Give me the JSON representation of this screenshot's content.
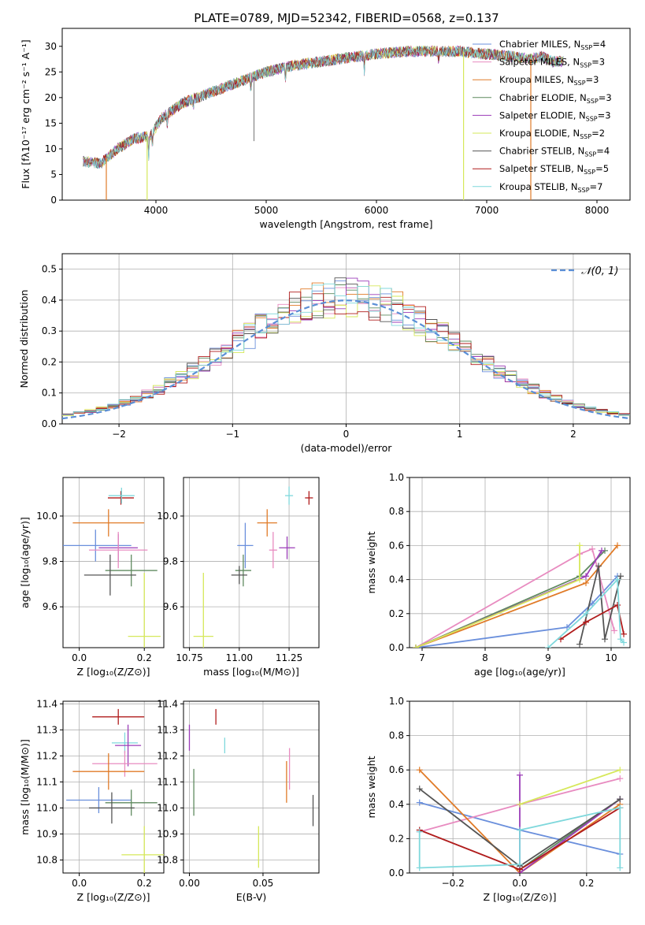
{
  "palette": {
    "chabrier_miles": "#6a8fdc",
    "salpeter_miles": "#e88bc0",
    "kroupa_miles": "#e07b28",
    "chabrier_elodie": "#5f8a5f",
    "salpeter_elodie": "#9b3cb8",
    "kroupa_elodie": "#d6e85a",
    "chabrier_stelib": "#555555",
    "salpeter_stelib": "#b01c1c",
    "kroupa_stelib": "#7fd8dc",
    "normal_curve": "#5b8fd6"
  },
  "chart_data": [
    {
      "id": "spectrum",
      "type": "line",
      "title": "PLATE=0789, MJD=52342, FIBERID=0568, z=0.137",
      "xlabel": "wavelength [Angstrom, rest frame]",
      "ylabel": "Flux [fλ10⁻¹⁷ erg cm⁻² s⁻¹ A⁻¹]",
      "xlim": [
        3150,
        8300
      ],
      "ylim": [
        0,
        33.5
      ],
      "xticks": [
        4000,
        5000,
        6000,
        7000,
        8000
      ],
      "yticks": [
        0,
        5,
        10,
        15,
        20,
        25,
        30
      ],
      "grid": false,
      "legend_position": "top-right",
      "legend": [
        {
          "label": "Chabrier MILES, N",
          "sub": "SSP",
          "tail": "=4",
          "color": "#6a8fdc"
        },
        {
          "label": "Salpeter MILES, N",
          "sub": "SSP",
          "tail": "=3",
          "color": "#e88bc0"
        },
        {
          "label": "Kroupa MILES, N",
          "sub": "SSP",
          "tail": "=3",
          "color": "#e07b28"
        },
        {
          "label": "Chabrier ELODIE, N",
          "sub": "SSP",
          "tail": "=3",
          "color": "#5f8a5f"
        },
        {
          "label": "Salpeter ELODIE, N",
          "sub": "SSP",
          "tail": "=3",
          "color": "#9b3cb8"
        },
        {
          "label": "Kroupa ELODIE, N",
          "sub": "SSP",
          "tail": "=2",
          "color": "#d6e85a"
        },
        {
          "label": "Chabrier STELIB, N",
          "sub": "SSP",
          "tail": "=4",
          "color": "#555555"
        },
        {
          "label": "Salpeter STELIB, N",
          "sub": "SSP",
          "tail": "=5",
          "color": "#b01c1c"
        },
        {
          "label": "Kroupa STELIB, N",
          "sub": "SSP",
          "tail": "=7",
          "color": "#7fd8dc"
        }
      ],
      "continuum": [
        [
          3340,
          7.5
        ],
        [
          3500,
          7.2
        ],
        [
          3650,
          10
        ],
        [
          3800,
          12
        ],
        [
          3950,
          12.5
        ],
        [
          4050,
          16
        ],
        [
          4250,
          19
        ],
        [
          4500,
          21
        ],
        [
          4750,
          23
        ],
        [
          5000,
          25
        ],
        [
          5250,
          26.3
        ],
        [
          5500,
          27
        ],
        [
          5750,
          27.8
        ],
        [
          6000,
          28.5
        ],
        [
          6250,
          29
        ],
        [
          6500,
          29
        ],
        [
          6750,
          29
        ],
        [
          7000,
          28.5
        ],
        [
          7250,
          28
        ],
        [
          7400,
          27.5
        ],
        [
          7500,
          28
        ],
        [
          7600,
          27
        ],
        [
          7700,
          27
        ]
      ],
      "series": [
        {
          "color": "#6a8fdc",
          "x_range": [
            3340,
            7700
          ],
          "drops": []
        },
        {
          "color": "#e88bc0",
          "x_range": [
            3340,
            7700
          ],
          "drops": []
        },
        {
          "color": "#e07b28",
          "x_range": [
            3340,
            7400
          ],
          "drops": [
            7400
          ]
        },
        {
          "color": "#5f8a5f",
          "x_range": [
            3340,
            7700
          ],
          "drops": []
        },
        {
          "color": "#9b3cb8",
          "x_range": [
            3340,
            7700
          ],
          "drops": []
        },
        {
          "color": "#d6e85a",
          "x_range": [
            3340,
            7700
          ],
          "drops": []
        },
        {
          "color": "#555555",
          "x_range": [
            3340,
            7700
          ],
          "drops": []
        },
        {
          "color": "#b01c1c",
          "x_range": [
            3340,
            7700
          ],
          "drops": []
        },
        {
          "color": "#7fd8dc",
          "x_range": [
            3340,
            7700
          ],
          "drops": []
        }
      ],
      "drops_marks": [
        {
          "x": 3550,
          "color": "#e07b28"
        },
        {
          "x": 3920,
          "color": "#d6e85a"
        },
        {
          "x": 6790,
          "color": "#d6e85a"
        },
        {
          "x": 7400,
          "color": "#e07b28"
        }
      ]
    },
    {
      "id": "residuals",
      "type": "histogram",
      "xlabel": "(data-model)/error",
      "ylabel": "Normed distribution",
      "xlim": [
        -2.5,
        2.5
      ],
      "ylim": [
        0,
        0.55
      ],
      "xticks": [
        -2,
        -1,
        0,
        1,
        2
      ],
      "yticks": [
        0.0,
        0.1,
        0.2,
        0.3,
        0.4,
        0.5
      ],
      "grid": true,
      "legend_position": "top-right",
      "legend": [
        {
          "label": "𝒩(0, 1)",
          "color": "#5b8fd6",
          "dash": true
        }
      ],
      "bin_width": 0.1
    },
    {
      "id": "age-vs-z",
      "type": "errorbar",
      "xlabel": "Z [log₁₀(Z/Z⊙)]",
      "ylabel": "age  [log₁₀(age/yr)]",
      "xlim": [
        -0.05,
        0.26
      ],
      "ylim": [
        9.42,
        10.17
      ],
      "xticks": [
        0.0,
        0.2
      ],
      "yticks": [
        9.6,
        9.8,
        10.0
      ],
      "grid": true,
      "points": [
        {
          "x": 0.128,
          "y": 10.08,
          "xe": 0.04,
          "ye": 0.03,
          "color": "#b01c1c"
        },
        {
          "x": 0.13,
          "y": 10.09,
          "xe": 0.04,
          "ye": 0.035,
          "color": "#7fd8dc"
        },
        {
          "x": 0.09,
          "y": 9.97,
          "xe": 0.11,
          "ye": 0.06,
          "color": "#e07b28"
        },
        {
          "x": 0.05,
          "y": 9.87,
          "xe": 0.11,
          "ye": 0.07,
          "color": "#6a8fdc"
        },
        {
          "x": 0.12,
          "y": 9.86,
          "xe": 0.06,
          "ye": 0.06,
          "color": "#9b3cb8"
        },
        {
          "x": 0.12,
          "y": 9.85,
          "xe": 0.09,
          "ye": 0.08,
          "color": "#e88bc0"
        },
        {
          "x": 0.16,
          "y": 9.76,
          "xe": 0.08,
          "ye": 0.07,
          "color": "#5f8a5f"
        },
        {
          "x": 0.095,
          "y": 9.74,
          "xe": 0.08,
          "ye": 0.09,
          "color": "#555555"
        },
        {
          "x": 0.2,
          "y": 9.47,
          "xe": 0.05,
          "ye": 0.28,
          "color": "#d6e85a"
        }
      ]
    },
    {
      "id": "age-vs-mass",
      "type": "errorbar",
      "xlabel": "mass [log₁₀(M/M⊙)]",
      "ylabel": "",
      "xlim": [
        10.72,
        11.4
      ],
      "ylim": [
        9.42,
        10.17
      ],
      "xticks": [
        10.75,
        11.0,
        11.25
      ],
      "xticklabels": [
        "10.75",
        "11.00",
        "11.25"
      ],
      "yticks": [
        9.6,
        9.8,
        10.0
      ],
      "grid": true,
      "points": [
        {
          "x": 11.35,
          "y": 10.08,
          "xe": 0.02,
          "ye": 0.03,
          "color": "#b01c1c"
        },
        {
          "x": 11.25,
          "y": 10.09,
          "xe": 0.02,
          "ye": 0.04,
          "color": "#7fd8dc"
        },
        {
          "x": 11.14,
          "y": 9.97,
          "xe": 0.05,
          "ye": 0.06,
          "color": "#e07b28"
        },
        {
          "x": 11.03,
          "y": 9.87,
          "xe": 0.04,
          "ye": 0.1,
          "color": "#6a8fdc"
        },
        {
          "x": 11.24,
          "y": 9.86,
          "xe": 0.04,
          "ye": 0.05,
          "color": "#9b3cb8"
        },
        {
          "x": 11.17,
          "y": 9.85,
          "xe": 0.02,
          "ye": 0.08,
          "color": "#e88bc0"
        },
        {
          "x": 11.02,
          "y": 9.76,
          "xe": 0.04,
          "ye": 0.07,
          "color": "#5f8a5f"
        },
        {
          "x": 11.0,
          "y": 9.74,
          "xe": 0.04,
          "ye": 0.04,
          "color": "#555555"
        },
        {
          "x": 10.82,
          "y": 9.47,
          "xe": 0.05,
          "ye": 0.28,
          "color": "#d6e85a"
        }
      ]
    },
    {
      "id": "weight-vs-age",
      "type": "line",
      "xlabel": "age  [log₁₀(age/yr)]",
      "ylabel": "mass weight",
      "xlim": [
        6.8,
        10.3
      ],
      "ylim": [
        0,
        1.0
      ],
      "xticks": [
        7,
        8,
        9,
        10
      ],
      "yticks": [
        0.0,
        0.2,
        0.4,
        0.6,
        0.8,
        1.0
      ],
      "grid": true,
      "series": [
        {
          "color": "#6a8fdc",
          "x": [
            6.9,
            9.3,
            9.7,
            10.1
          ],
          "y": [
            0.0,
            0.12,
            0.26,
            0.42
          ]
        },
        {
          "color": "#e88bc0",
          "x": [
            6.9,
            9.5,
            9.7,
            10.05
          ],
          "y": [
            0.0,
            0.55,
            0.58,
            0.1
          ]
        },
        {
          "color": "#e07b28",
          "x": [
            6.9,
            9.6,
            10.1
          ],
          "y": [
            0.0,
            0.38,
            0.6
          ]
        },
        {
          "color": "#5f8a5f",
          "x": [
            6.9,
            9.5,
            9.9
          ],
          "y": [
            0.0,
            0.42,
            0.57
          ]
        },
        {
          "color": "#9b3cb8",
          "x": [
            6.9,
            9.6,
            9.85
          ],
          "y": [
            0.0,
            0.42,
            0.57
          ]
        },
        {
          "color": "#d6e85a",
          "x": [
            6.9,
            9.5,
            9.5
          ],
          "y": [
            0.0,
            0.4,
            0.6
          ]
        },
        {
          "color": "#555555",
          "x": [
            9.5,
            9.8,
            9.9,
            10.15
          ],
          "y": [
            0.02,
            0.48,
            0.05,
            0.42
          ]
        },
        {
          "color": "#b01c1c",
          "x": [
            9.2,
            9.6,
            10.1,
            10.2
          ],
          "y": [
            0.05,
            0.15,
            0.25,
            0.08
          ]
        },
        {
          "color": "#7fd8dc",
          "x": [
            9.0,
            9.6,
            10.1,
            10.15,
            10.2
          ],
          "y": [
            0.0,
            0.2,
            0.4,
            0.05,
            0.03
          ]
        }
      ]
    },
    {
      "id": "mass-vs-z",
      "type": "errorbar",
      "xlabel": "Z [log₁₀(Z/Z⊙)]",
      "ylabel": "mass [log₁₀(M/M⊙)]",
      "xlim": [
        -0.05,
        0.26
      ],
      "ylim": [
        10.75,
        11.41
      ],
      "xticks": [
        0.0,
        0.2
      ],
      "yticks": [
        10.8,
        10.9,
        11.0,
        11.1,
        11.2,
        11.3,
        11.4
      ],
      "grid": true,
      "points": [
        {
          "x": 0.12,
          "y": 11.35,
          "xe": 0.08,
          "ye": 0.03,
          "color": "#b01c1c"
        },
        {
          "x": 0.14,
          "y": 11.25,
          "xe": 0.04,
          "ye": 0.04,
          "color": "#7fd8dc"
        },
        {
          "x": 0.15,
          "y": 11.24,
          "xe": 0.04,
          "ye": 0.08,
          "color": "#9b3cb8"
        },
        {
          "x": 0.14,
          "y": 11.17,
          "xe": 0.1,
          "ye": 0.05,
          "color": "#e88bc0"
        },
        {
          "x": 0.09,
          "y": 11.14,
          "xe": 0.11,
          "ye": 0.07,
          "color": "#e07b28"
        },
        {
          "x": 0.06,
          "y": 11.03,
          "xe": 0.1,
          "ye": 0.05,
          "color": "#6a8fdc"
        },
        {
          "x": 0.16,
          "y": 11.02,
          "xe": 0.08,
          "ye": 0.05,
          "color": "#5f8a5f"
        },
        {
          "x": 0.1,
          "y": 11.0,
          "xe": 0.07,
          "ye": 0.06,
          "color": "#555555"
        },
        {
          "x": 0.2,
          "y": 10.82,
          "xe": 0.07,
          "ye": 0.11,
          "color": "#d6e85a"
        }
      ]
    },
    {
      "id": "mass-vs-ebv",
      "type": "errorbar",
      "xlabel": "E(B-V)",
      "ylabel": "",
      "xlim": [
        -0.004,
        0.088
      ],
      "ylim": [
        10.75,
        11.41
      ],
      "xticks": [
        0.0,
        0.05
      ],
      "xticklabels": [
        "0.00",
        "0.05"
      ],
      "yticks": [
        10.8,
        10.9,
        11.0,
        11.1,
        11.2,
        11.3,
        11.4
      ],
      "grid": true,
      "points": [
        {
          "x": 0.018,
          "y": 11.35,
          "xe": 0,
          "ye": 0.03,
          "color": "#b01c1c"
        },
        {
          "x": 0.024,
          "y": 11.24,
          "xe": 0,
          "ye": 0.03,
          "color": "#7fd8dc"
        },
        {
          "x": 0.0,
          "y": 11.27,
          "xe": 0,
          "ye": 0.05,
          "color": "#9b3cb8"
        },
        {
          "x": 0.068,
          "y": 11.15,
          "xe": 0,
          "ye": 0.08,
          "color": "#e88bc0"
        },
        {
          "x": 0.066,
          "y": 11.1,
          "xe": 0,
          "ye": 0.08,
          "color": "#e07b28"
        },
        {
          "x": 0.003,
          "y": 11.06,
          "xe": 0,
          "ye": 0.09,
          "color": "#5f8a5f"
        },
        {
          "x": 0.084,
          "y": 10.99,
          "xe": 0,
          "ye": 0.06,
          "color": "#555555"
        },
        {
          "x": 0.047,
          "y": 10.85,
          "xe": 0,
          "ye": 0.08,
          "color": "#d6e85a"
        }
      ]
    },
    {
      "id": "weight-vs-z",
      "type": "line",
      "xlabel": "Z [log₁₀(Z/Z⊙)]",
      "ylabel": "mass weight",
      "xlim": [
        -0.33,
        0.33
      ],
      "ylim": [
        0,
        1.0
      ],
      "xticks": [
        -0.2,
        0.0,
        0.2
      ],
      "yticks": [
        0.0,
        0.2,
        0.4,
        0.6,
        0.8,
        1.0
      ],
      "grid": true,
      "series": [
        {
          "color": "#6a8fdc",
          "x": [
            -0.3,
            0.0,
            0.3
          ],
          "y": [
            0.41,
            0.25,
            0.11
          ]
        },
        {
          "color": "#e88bc0",
          "x": [
            -0.3,
            0.0,
            0.3
          ],
          "y": [
            0.24,
            0.4,
            0.55
          ]
        },
        {
          "color": "#e07b28",
          "x": [
            -0.3,
            0.0,
            0.3
          ],
          "y": [
            0.6,
            0.0,
            0.4
          ]
        },
        {
          "color": "#5f8a5f",
          "x": [
            0.0,
            0.0,
            0.3
          ],
          "y": [
            0.0,
            0.02,
            0.43
          ]
        },
        {
          "color": "#9b3cb8",
          "x": [
            0.0,
            0.0,
            0.3
          ],
          "y": [
            0.57,
            0.0,
            0.43
          ]
        },
        {
          "color": "#d6e85a",
          "x": [
            0.0,
            0.3
          ],
          "y": [
            0.4,
            0.6
          ]
        },
        {
          "color": "#555555",
          "x": [
            -0.3,
            0.0,
            0.3
          ],
          "y": [
            0.49,
            0.04,
            0.43
          ]
        },
        {
          "color": "#b01c1c",
          "x": [
            -0.3,
            0.0,
            0.3
          ],
          "y": [
            0.25,
            0.02,
            0.38
          ]
        },
        {
          "color": "#7fd8dc",
          "x": [
            -0.3,
            -0.3,
            0.0,
            0.0,
            0.3,
            0.3
          ],
          "y": [
            0.24,
            0.03,
            0.05,
            0.25,
            0.38,
            0.03
          ]
        }
      ]
    }
  ]
}
